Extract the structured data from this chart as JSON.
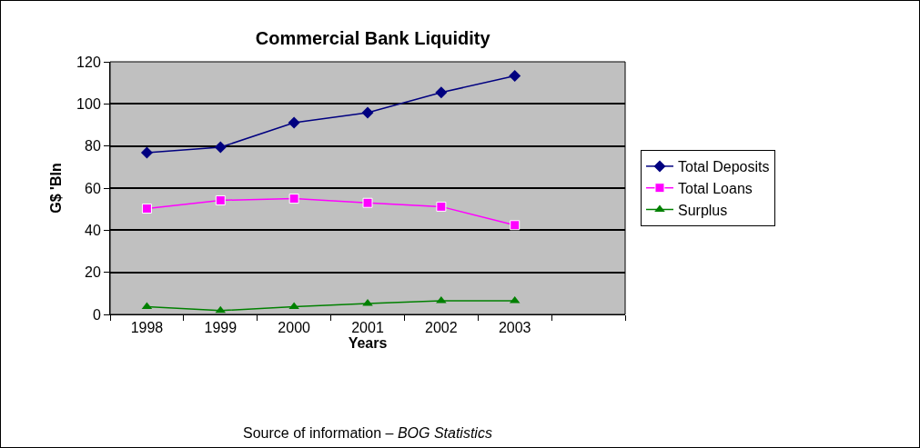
{
  "chart_data": {
    "type": "line",
    "title": "Commercial Bank Liquidity",
    "xlabel": "Years",
    "ylabel": "G$ 'Bln",
    "categories": [
      "1998",
      "1999",
      "2000",
      "2001",
      "2002",
      "2003",
      null
    ],
    "series": [
      {
        "name": "Total Deposits",
        "color": "#000080",
        "marker": "diamond",
        "values": [
          76.8,
          79.4,
          91.1,
          95.8,
          105.4,
          113.3,
          null
        ]
      },
      {
        "name": "Total Loans",
        "color": "#ff00ff",
        "marker": "square",
        "values": [
          50.3,
          54.2,
          55.0,
          53.0,
          51.2,
          42.4,
          null
        ]
      },
      {
        "name": "Surplus",
        "color": "#008000",
        "marker": "triangle",
        "values": [
          3.7,
          1.8,
          3.7,
          5.2,
          6.5,
          6.5,
          null
        ]
      }
    ],
    "ylim": [
      0,
      120
    ],
    "yticks": [
      0,
      20,
      40,
      60,
      80,
      100,
      120
    ],
    "grid": "y",
    "legend": "right",
    "annotations": [
      "Source of information –",
      "BOG Statistics"
    ]
  }
}
